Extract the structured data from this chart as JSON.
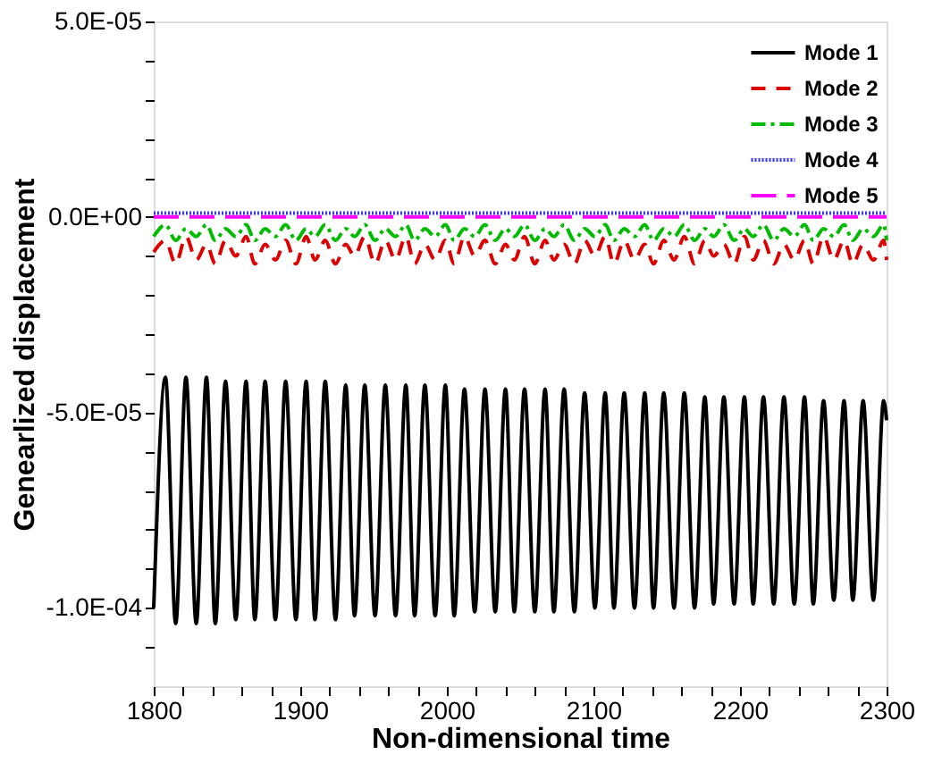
{
  "chart_data": {
    "type": "line",
    "xlabel": "Non-dimensional time",
    "ylabel": "Genearlized displacement",
    "xlim": [
      1800,
      2300
    ],
    "xticks": [
      1800,
      {
        "value": 1820,
        "label": null
      },
      {
        "value": 1840,
        "label": null
      },
      {
        "value": 1860,
        "label": null
      },
      {
        "value": 1880,
        "label": null
      },
      1900,
      {
        "value": 1920,
        "label": null
      },
      {
        "value": 1940,
        "label": null
      },
      {
        "value": 1960,
        "label": null
      },
      {
        "value": 1980,
        "label": null
      },
      2000,
      {
        "value": 2020,
        "label": null
      },
      {
        "value": 2040,
        "label": null
      },
      {
        "value": 2060,
        "label": null
      },
      {
        "value": 2080,
        "label": null
      },
      2100,
      {
        "value": 2120,
        "label": null
      },
      {
        "value": 2140,
        "label": null
      },
      {
        "value": 2160,
        "label": null
      },
      {
        "value": 2180,
        "label": null
      },
      2200,
      {
        "value": 2220,
        "label": null
      },
      {
        "value": 2240,
        "label": null
      },
      {
        "value": 2260,
        "label": null
      },
      {
        "value": 2280,
        "label": null
      },
      2300
    ],
    "ylim": [
      -0.00012,
      5e-05
    ],
    "yticks": [
      {
        "value": -0.00011,
        "label": null
      },
      {
        "value": -0.0001,
        "label": "-1.0E-04"
      },
      {
        "value": -9e-05,
        "label": null
      },
      {
        "value": -8e-05,
        "label": null
      },
      {
        "value": -7e-05,
        "label": null
      },
      {
        "value": -6e-05,
        "label": null
      },
      {
        "value": -5e-05,
        "label": "-5.0E-05"
      },
      {
        "value": -4e-05,
        "label": null
      },
      {
        "value": -3e-05,
        "label": null
      },
      {
        "value": -2e-05,
        "label": null
      },
      {
        "value": -1e-05,
        "label": null
      },
      {
        "value": 0,
        "label": "0.0E+00"
      },
      {
        "value": 1e-05,
        "label": null
      },
      {
        "value": 2e-05,
        "label": null
      },
      {
        "value": 3e-05,
        "label": null
      },
      {
        "value": 4e-05,
        "label": null
      },
      {
        "value": 5e-05,
        "label": "5.0E-05"
      }
    ],
    "grid": false,
    "legend": "top right",
    "marker": "none",
    "x": [
      1800,
      1808,
      1815,
      1822,
      1829,
      1836,
      1842,
      1849,
      1856,
      1863,
      1869,
      1876,
      1883,
      1890,
      1897,
      1904,
      1910,
      1917,
      1924,
      1931,
      1937,
      1944,
      1951,
      1958,
      1965,
      1972,
      1978,
      1985,
      1992,
      1999,
      2005,
      2012,
      2019,
      2026,
      2033,
      2040,
      2046,
      2053,
      2060,
      2067,
      2073,
      2080,
      2087,
      2094,
      2101,
      2108,
      2114,
      2121,
      2128,
      2135,
      2141,
      2148,
      2155,
      2162,
      2169,
      2176,
      2182,
      2189,
      2196,
      2203,
      2209,
      2216,
      2223,
      2230,
      2237,
      2244,
      2250,
      2257,
      2264,
      2271,
      2277,
      2284,
      2291,
      2298,
      2300
    ],
    "series": [
      {
        "name": "Mode 1",
        "color": "#000000",
        "line_style": "solid",
        "values": [
          -0.0001,
          -4.1e-05,
          -0.000104,
          -4.1e-05,
          -0.000104,
          -4.1e-05,
          -0.000104,
          -4.2e-05,
          -0.000103,
          -4.2e-05,
          -0.000103,
          -4.2e-05,
          -0.000103,
          -4.2e-05,
          -0.000103,
          -4.2e-05,
          -0.000103,
          -4.2e-05,
          -0.000103,
          -4.3e-05,
          -0.000102,
          -4.3e-05,
          -0.000102,
          -4.3e-05,
          -0.000102,
          -4.3e-05,
          -0.000102,
          -4.3e-05,
          -0.000102,
          -4.3e-05,
          -0.000102,
          -4.4e-05,
          -0.000101,
          -4.4e-05,
          -0.000101,
          -4.4e-05,
          -0.000101,
          -4.4e-05,
          -0.000101,
          -4.4e-05,
          -0.000101,
          -4.4e-05,
          -0.000101,
          -4.5e-05,
          -0.0001,
          -4.5e-05,
          -0.0001,
          -4.5e-05,
          -0.0001,
          -4.5e-05,
          -0.0001,
          -4.5e-05,
          -0.0001,
          -4.5e-05,
          -0.0001,
          -4.6e-05,
          -9.9e-05,
          -4.6e-05,
          -9.9e-05,
          -4.6e-05,
          -9.9e-05,
          -4.6e-05,
          -9.9e-05,
          -4.6e-05,
          -9.9e-05,
          -4.6e-05,
          -9.9e-05,
          -4.7e-05,
          -9.8e-05,
          -4.7e-05,
          -9.8e-05,
          -4.7e-05,
          -9.8e-05,
          -4.7e-05,
          -5.2e-05
        ]
      },
      {
        "name": "Mode 2",
        "color": "#dd0000",
        "line_style": "dashed",
        "values": [
          -9e-06,
          -6e-06,
          -1.2e-05,
          -5e-06,
          -1.1e-05,
          -7e-06,
          -1.2e-05,
          -6e-06,
          -1e-05,
          -5e-06,
          -1.2e-05,
          -7e-06,
          -1.1e-05,
          -6e-06,
          -1.2e-05,
          -5e-06,
          -1.1e-05,
          -6e-06,
          -1.2e-05,
          -7e-06,
          -1e-05,
          -5e-06,
          -1.2e-05,
          -6e-06,
          -1.1e-05,
          -5e-06,
          -1.2e-05,
          -7e-06,
          -1.1e-05,
          -6e-06,
          -1.2e-05,
          -5e-06,
          -1e-05,
          -6e-06,
          -1.2e-05,
          -7e-06,
          -1.1e-05,
          -5e-06,
          -1.2e-05,
          -6e-06,
          -1.1e-05,
          -7e-06,
          -1.2e-05,
          -6e-06,
          -1e-05,
          -5e-06,
          -1.2e-05,
          -6e-06,
          -1.1e-05,
          -7e-06,
          -1.2e-05,
          -6e-06,
          -1.1e-05,
          -5e-06,
          -1.2e-05,
          -6e-06,
          -1e-05,
          -7e-06,
          -1.2e-05,
          -5e-06,
          -1.1e-05,
          -6e-06,
          -1.2e-05,
          -7e-06,
          -1.1e-05,
          -6e-06,
          -1.2e-05,
          -5e-06,
          -1.1e-05,
          -6e-06,
          -1.2e-05,
          -7e-06,
          -1.1e-05,
          -6e-06,
          -1.1e-05
        ]
      },
      {
        "name": "Mode 3",
        "color": "#00bb00",
        "line_style": "dashdot",
        "values": [
          -5e-06,
          -2e-06,
          -6e-06,
          -3e-06,
          -5e-06,
          -2e-06,
          -6e-06,
          -3e-06,
          -5e-06,
          -2e-06,
          -6e-06,
          -3e-06,
          -5e-06,
          -2e-06,
          -6e-06,
          -3e-06,
          -5e-06,
          -2e-06,
          -6e-06,
          -3e-06,
          -5e-06,
          -2e-06,
          -6e-06,
          -3e-06,
          -5e-06,
          -2e-06,
          -6e-06,
          -3e-06,
          -5e-06,
          -2e-06,
          -6e-06,
          -3e-06,
          -5e-06,
          -2e-06,
          -6e-06,
          -3e-06,
          -5e-06,
          -2e-06,
          -6e-06,
          -3e-06,
          -5e-06,
          -2e-06,
          -6e-06,
          -3e-06,
          -5e-06,
          -2e-06,
          -6e-06,
          -3e-06,
          -5e-06,
          -2e-06,
          -6e-06,
          -3e-06,
          -5e-06,
          -2e-06,
          -6e-06,
          -3e-06,
          -5e-06,
          -2e-06,
          -6e-06,
          -3e-06,
          -5e-06,
          -2e-06,
          -6e-06,
          -3e-06,
          -5e-06,
          -2e-06,
          -6e-06,
          -3e-06,
          -5e-06,
          -2e-06,
          -6e-06,
          -3e-06,
          -5e-06,
          -2e-06,
          -6e-06
        ]
      },
      {
        "name": "Mode 4",
        "color": "#3333ff",
        "line_style": "dotted",
        "values": [
          1e-06,
          1e-06,
          1e-06,
          1e-06,
          1e-06,
          1e-06,
          1e-06,
          1e-06,
          1e-06,
          1e-06,
          1e-06,
          1e-06,
          1e-06,
          1e-06,
          1e-06,
          1e-06,
          1e-06,
          1e-06,
          1e-06,
          1e-06,
          1e-06,
          1e-06,
          1e-06,
          1e-06,
          1e-06,
          1e-06,
          1e-06,
          1e-06,
          1e-06,
          1e-06,
          1e-06,
          1e-06,
          1e-06,
          1e-06,
          1e-06,
          1e-06,
          1e-06,
          1e-06,
          1e-06,
          1e-06,
          1e-06,
          1e-06,
          1e-06,
          1e-06,
          1e-06,
          1e-06,
          1e-06,
          1e-06,
          1e-06,
          1e-06,
          1e-06,
          1e-06,
          1e-06,
          1e-06,
          1e-06,
          1e-06,
          1e-06,
          1e-06,
          1e-06,
          1e-06,
          1e-06,
          1e-06,
          1e-06,
          1e-06,
          1e-06,
          1e-06,
          1e-06,
          1e-06,
          1e-06,
          1e-06,
          1e-06,
          1e-06,
          1e-06,
          1e-06,
          1e-06
        ]
      },
      {
        "name": "Mode 5",
        "color": "#ff00ff",
        "line_style": "longdash",
        "x": [
          1800,
          2300
        ],
        "values": [
          0,
          0
        ]
      }
    ]
  }
}
